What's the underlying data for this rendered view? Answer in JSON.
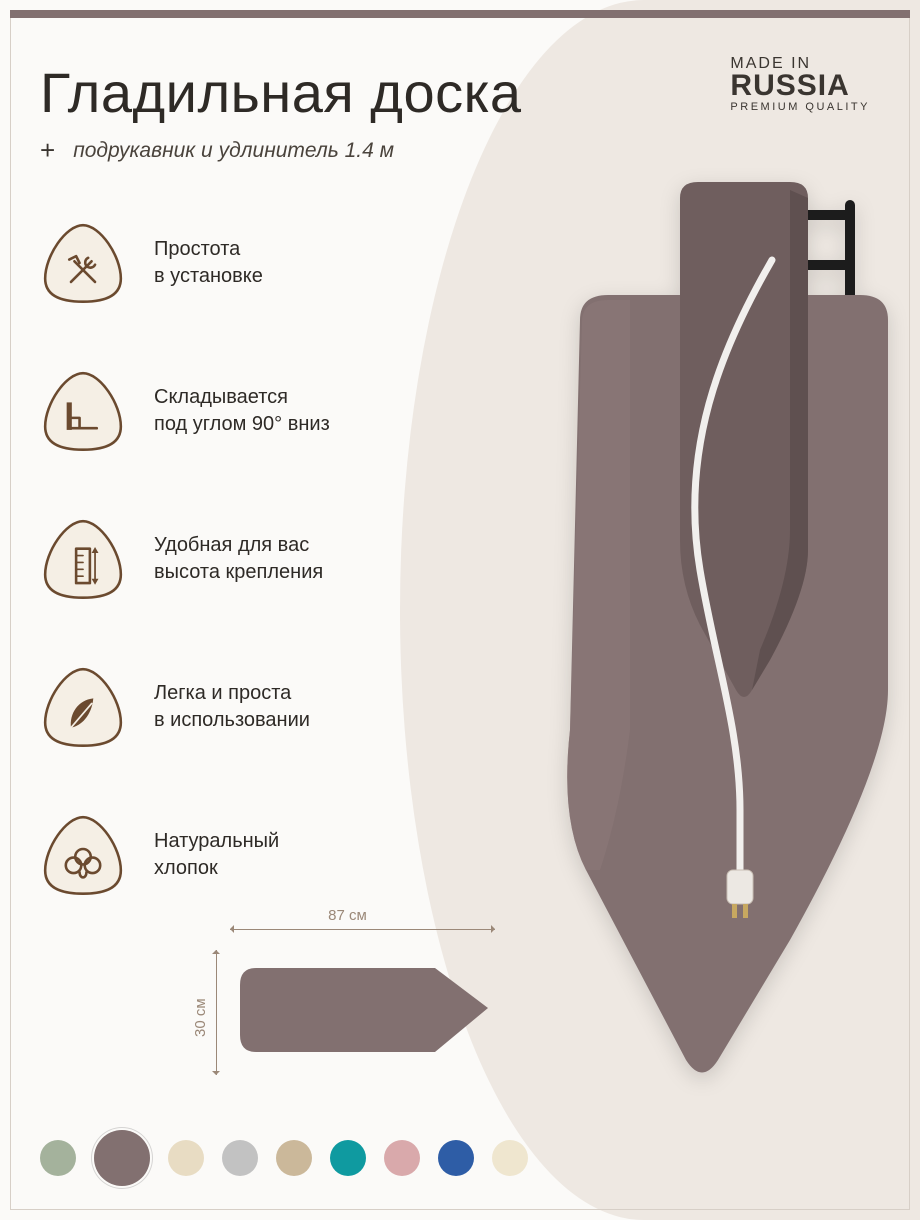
{
  "colors": {
    "accent": "#827070",
    "accent_dark": "#6f5e5e",
    "accent_light": "#8c7878",
    "brown": "#6b4a2f",
    "badge_fill": "#f5efe5",
    "badge_stroke": "#6b4a2f",
    "bg_curve": "#eee8e2",
    "dim_stroke": "#9b8878"
  },
  "header": {
    "title": "Гладильная доска",
    "plus": "+",
    "subtitle": "подрукавник и удлинитель 1.4 м"
  },
  "made_in": {
    "line1": "MADE IN",
    "line2": "RUSSIA",
    "line3": "PREMIUM QUALITY"
  },
  "features": [
    {
      "icon": "tools",
      "line1": "Простота",
      "line2": "в установке"
    },
    {
      "icon": "angle",
      "line1": "Складывается",
      "line2": "под углом 90° вниз"
    },
    {
      "icon": "ruler",
      "line1": "Удобная для вас",
      "line2": "высота крепления"
    },
    {
      "icon": "feather",
      "line1": "Легка и проста",
      "line2": "в использовании"
    },
    {
      "icon": "cotton",
      "line1": "Натуральный",
      "line2": "хлопок"
    }
  ],
  "dimensions": {
    "width_label": "87 см",
    "height_label": "30 см"
  },
  "swatches": [
    {
      "hex": "#a4b29c",
      "selected": false
    },
    {
      "hex": "#827070",
      "selected": true
    },
    {
      "hex": "#e8dcc3",
      "selected": false
    },
    {
      "hex": "#c2c2c2",
      "selected": false
    },
    {
      "hex": "#cbb89a",
      "selected": false
    },
    {
      "hex": "#0f9aa0",
      "selected": false
    },
    {
      "hex": "#d9a9ab",
      "selected": false
    },
    {
      "hex": "#2e5da6",
      "selected": false
    },
    {
      "hex": "#efe6cf",
      "selected": false
    }
  ]
}
